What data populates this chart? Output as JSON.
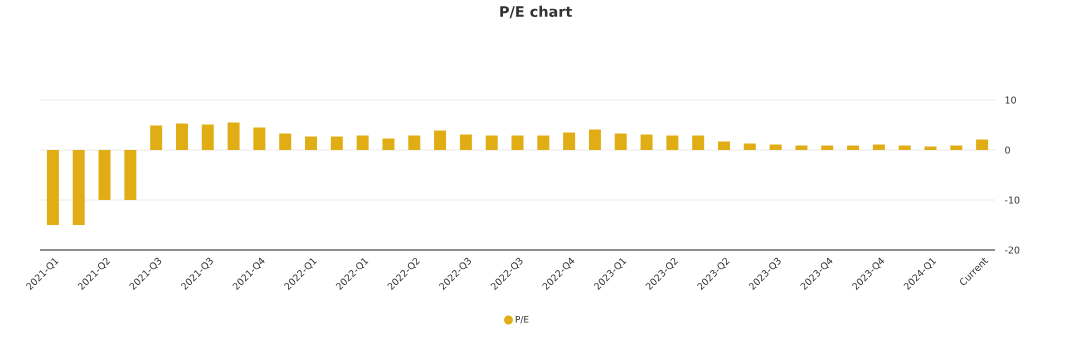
{
  "chart_data": {
    "type": "bar",
    "title": "P/E chart",
    "categories": [
      "2021-Q1",
      null,
      "2021-Q2",
      null,
      "2021-Q3",
      null,
      "2021-Q3",
      null,
      "2021-Q4",
      null,
      "2022-Q1",
      null,
      "2022-Q1",
      null,
      "2022-Q2",
      null,
      "2022-Q3",
      null,
      "2022-Q3",
      null,
      "2022-Q4",
      null,
      "2023-Q1",
      null,
      "2023-Q2",
      null,
      "2023-Q2",
      null,
      "2023-Q3",
      null,
      "2023-Q4",
      null,
      "2023-Q4",
      null,
      "2024-Q1",
      null,
      "Current"
    ],
    "series": [
      {
        "name": "P/E",
        "color": "#e0ae14",
        "values": [
          -15,
          -15,
          -10,
          -10,
          4.9,
          5.3,
          5.1,
          5.5,
          4.5,
          3.3,
          2.7,
          2.7,
          2.9,
          2.3,
          2.9,
          3.9,
          3.1,
          2.9,
          2.9,
          2.9,
          3.5,
          4.1,
          3.3,
          3.1,
          2.9,
          2.9,
          1.7,
          1.3,
          1.1,
          0.9,
          0.9,
          0.9,
          1.1,
          0.9,
          0.7,
          0.9,
          2.1
        ]
      }
    ],
    "ylim": [
      -20,
      10
    ],
    "yticks": [
      -20,
      -10,
      0,
      10
    ],
    "grid": "y",
    "legend": "bottom"
  }
}
